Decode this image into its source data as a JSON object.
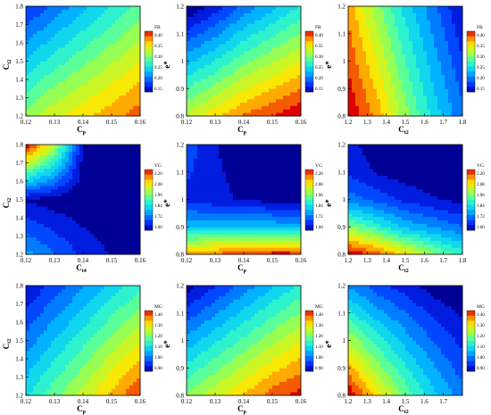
{
  "chart_data": [
    {
      "type": "heatmap",
      "xlabel": "C_p",
      "ylabel": "C_t2",
      "legend_title": "FB",
      "xticks": [
        "0.12",
        "0.13",
        "0.14",
        "0.15",
        "0.16"
      ],
      "yticks": [
        "1.2",
        "1.3",
        "1.4",
        "1.5",
        "1.6",
        "1.7",
        "1.8"
      ],
      "colorbar_ticks": [
        "0.40",
        "0.35",
        "0.30",
        "0.25",
        "0.20",
        "0.15"
      ],
      "xlim": [
        0.12,
        0.16
      ],
      "ylim": [
        1.2,
        1.8
      ],
      "colorbar_range": [
        0.12,
        0.42
      ],
      "field": {
        "rows": [
          1.2,
          1.8
        ],
        "values": [
          [
            0.3,
            0.33,
            0.35,
            0.37,
            0.39
          ],
          [
            0.16,
            0.19,
            0.22,
            0.25,
            0.28
          ]
        ]
      }
    },
    {
      "type": "heatmap",
      "xlabel": "C_p",
      "ylabel": "e*",
      "legend_title": "FB",
      "xticks": [
        "0.12",
        "0.13",
        "0.14",
        "0.15",
        "0.16"
      ],
      "yticks": [
        "0.8",
        "0.9",
        "1",
        "1.1",
        "1.2"
      ],
      "colorbar_ticks": [
        "0.40",
        "0.35",
        "0.30",
        "0.25",
        "0.20",
        "0.15"
      ],
      "xlim": [
        0.12,
        0.16
      ],
      "ylim": [
        0.8,
        1.2
      ],
      "colorbar_range": [
        0.12,
        0.42
      ],
      "field": {
        "rows": [
          0.8,
          1.2
        ],
        "values": [
          [
            0.32,
            0.35,
            0.38,
            0.4,
            0.42
          ],
          [
            0.12,
            0.15,
            0.19,
            0.22,
            0.25
          ]
        ]
      }
    },
    {
      "type": "heatmap",
      "xlabel": "C_t2",
      "ylabel": "e*",
      "legend_title": "FB",
      "xticks": [
        "1.2",
        "1.3",
        "1.4",
        "1.5",
        "1.6",
        "1.7",
        "1.8"
      ],
      "yticks": [
        "0.8",
        "0.9",
        "1",
        "1.1",
        "1.2"
      ],
      "colorbar_ticks": [
        "0.40",
        "0.35",
        "0.30",
        "0.25",
        "0.20",
        "0.15"
      ],
      "xlim": [
        1.2,
        1.8
      ],
      "ylim": [
        0.8,
        1.2
      ],
      "colorbar_range": [
        0.12,
        0.42
      ],
      "field": {
        "rows": [
          0.8,
          1.2
        ],
        "values": [
          [
            0.42,
            0.37,
            0.3,
            0.24,
            0.19
          ],
          [
            0.37,
            0.3,
            0.24,
            0.19,
            0.14
          ]
        ]
      }
    },
    {
      "type": "heatmap",
      "xlabel": "C_t4",
      "ylabel": "C_t2",
      "legend_title": "VG",
      "xticks": [
        "0.12",
        "0.13",
        "0.14",
        "0.15",
        "0.16"
      ],
      "yticks": [
        "1.2",
        "1.3",
        "1.4",
        "1.5",
        "1.6",
        "1.7",
        "1.8"
      ],
      "colorbar_ticks": [
        "2.20",
        "2.08",
        "1.96",
        "1.84",
        "1.72",
        "1.60"
      ],
      "xlim": [
        0.12,
        0.16
      ],
      "ylim": [
        1.2,
        1.8
      ],
      "colorbar_range": [
        1.58,
        2.22
      ],
      "field": {
        "rows": [
          1.2,
          1.5,
          1.8
        ],
        "values": [
          [
            1.78,
            1.72,
            1.66,
            1.62,
            1.61
          ],
          [
            1.62,
            1.6,
            1.59,
            1.59,
            1.59
          ],
          [
            2.22,
            2.0,
            1.62,
            1.6,
            1.59
          ]
        ]
      }
    },
    {
      "type": "heatmap",
      "xlabel": "C_p",
      "ylabel": "e*",
      "legend_title": "VG",
      "xticks": [
        "0.12",
        "0.13",
        "0.14",
        "0.15",
        "0.16"
      ],
      "yticks": [
        "0.8",
        "0.9",
        "1",
        "1.1",
        "1.2"
      ],
      "colorbar_ticks": [
        "2.20",
        "2.08",
        "1.96",
        "1.84",
        "1.72",
        "1.60"
      ],
      "xlim": [
        0.12,
        0.16
      ],
      "ylim": [
        0.8,
        1.2
      ],
      "colorbar_range": [
        1.58,
        2.22
      ],
      "field": {
        "rows": [
          0.8,
          0.85,
          0.9,
          1.0,
          1.2
        ],
        "values": [
          [
            2.1,
            2.14,
            2.18,
            2.2,
            2.2
          ],
          [
            1.96,
            1.98,
            2.0,
            2.0,
            1.99
          ],
          [
            1.8,
            1.8,
            1.8,
            1.8,
            1.79
          ],
          [
            1.66,
            1.64,
            1.62,
            1.61,
            1.6
          ],
          [
            1.7,
            1.63,
            1.59,
            1.59,
            1.59
          ]
        ]
      }
    },
    {
      "type": "heatmap",
      "xlabel": "C_t2",
      "ylabel": "e*",
      "legend_title": "VG",
      "xticks": [
        "1.2",
        "1.3",
        "1.4",
        "1.5",
        "1.6",
        "1.7",
        "1.8"
      ],
      "yticks": [
        "0.8",
        "0.9",
        "1",
        "1.1",
        "1.2"
      ],
      "colorbar_ticks": [
        "2.20",
        "2.08",
        "1.96",
        "1.84",
        "1.72",
        "1.60"
      ],
      "xlim": [
        1.2,
        1.8
      ],
      "ylim": [
        0.8,
        1.2
      ],
      "colorbar_range": [
        1.58,
        2.22
      ],
      "field": {
        "rows": [
          0.8,
          0.9,
          1.0,
          1.1,
          1.2
        ],
        "values": [
          [
            2.22,
            2.16,
            2.06,
            1.96,
            1.88
          ],
          [
            1.96,
            1.88,
            1.8,
            1.76,
            1.72
          ],
          [
            1.74,
            1.7,
            1.66,
            1.63,
            1.61
          ],
          [
            1.66,
            1.62,
            1.6,
            1.59,
            1.59
          ],
          [
            1.64,
            1.6,
            1.59,
            1.59,
            1.59
          ]
        ]
      }
    },
    {
      "type": "heatmap",
      "xlabel": "C_p",
      "ylabel": "C_t2",
      "legend_title": "MG",
      "xticks": [
        "0.12",
        "0.13",
        "0.14",
        "0.15",
        "0.16"
      ],
      "yticks": [
        "1.2",
        "1.3",
        "1.4",
        "1.5",
        "1.6",
        "1.7",
        "1.8"
      ],
      "colorbar_ticks": [
        "1.40",
        "1.30",
        "1.20",
        "1.10",
        "1.00",
        "0.90"
      ],
      "xlim": [
        0.12,
        0.16
      ],
      "ylim": [
        1.2,
        1.8
      ],
      "colorbar_range": [
        0.86,
        1.44
      ],
      "field": {
        "rows": [
          1.2,
          1.8
        ],
        "values": [
          [
            1.1,
            1.18,
            1.25,
            1.33,
            1.4
          ],
          [
            0.9,
            0.96,
            1.02,
            1.08,
            1.14
          ]
        ]
      }
    },
    {
      "type": "heatmap",
      "xlabel": "C_p",
      "ylabel": "e*",
      "legend_title": "MG",
      "xticks": [
        "0.12",
        "0.13",
        "0.14",
        "0.15",
        "0.16"
      ],
      "yticks": [
        "0.8",
        "0.9",
        "1",
        "1.1",
        "1.2"
      ],
      "colorbar_ticks": [
        "1.40",
        "1.30",
        "1.20",
        "1.10",
        "1.00",
        "0.90"
      ],
      "xlim": [
        0.12,
        0.16
      ],
      "ylim": [
        0.8,
        1.2
      ],
      "colorbar_range": [
        0.86,
        1.44
      ],
      "field": {
        "rows": [
          0.8,
          1.2
        ],
        "values": [
          [
            1.2,
            1.26,
            1.32,
            1.38,
            1.42
          ],
          [
            0.88,
            0.94,
            1.0,
            1.06,
            1.12
          ]
        ]
      }
    },
    {
      "type": "heatmap",
      "xlabel": "C_t2",
      "ylabel": "e*",
      "legend_title": "MG",
      "xticks": [
        "1.2",
        "1.3",
        "1.4",
        "1.5",
        "1.6",
        "1.7"
      ],
      "yticks": [
        "0.8",
        "0.9",
        "1",
        "1.1",
        "1.2"
      ],
      "colorbar_ticks": [
        "1.40",
        "1.30",
        "1.20",
        "1.10",
        "1.00",
        "0.90"
      ],
      "xlim": [
        1.2,
        1.8
      ],
      "ylim": [
        0.8,
        1.2
      ],
      "colorbar_range": [
        0.86,
        1.44
      ],
      "field": {
        "rows": [
          0.8,
          1.2
        ],
        "values": [
          [
            1.44,
            1.3,
            1.18,
            1.08,
            1.0
          ],
          [
            1.02,
            0.96,
            0.92,
            0.88,
            0.86
          ]
        ]
      }
    }
  ]
}
